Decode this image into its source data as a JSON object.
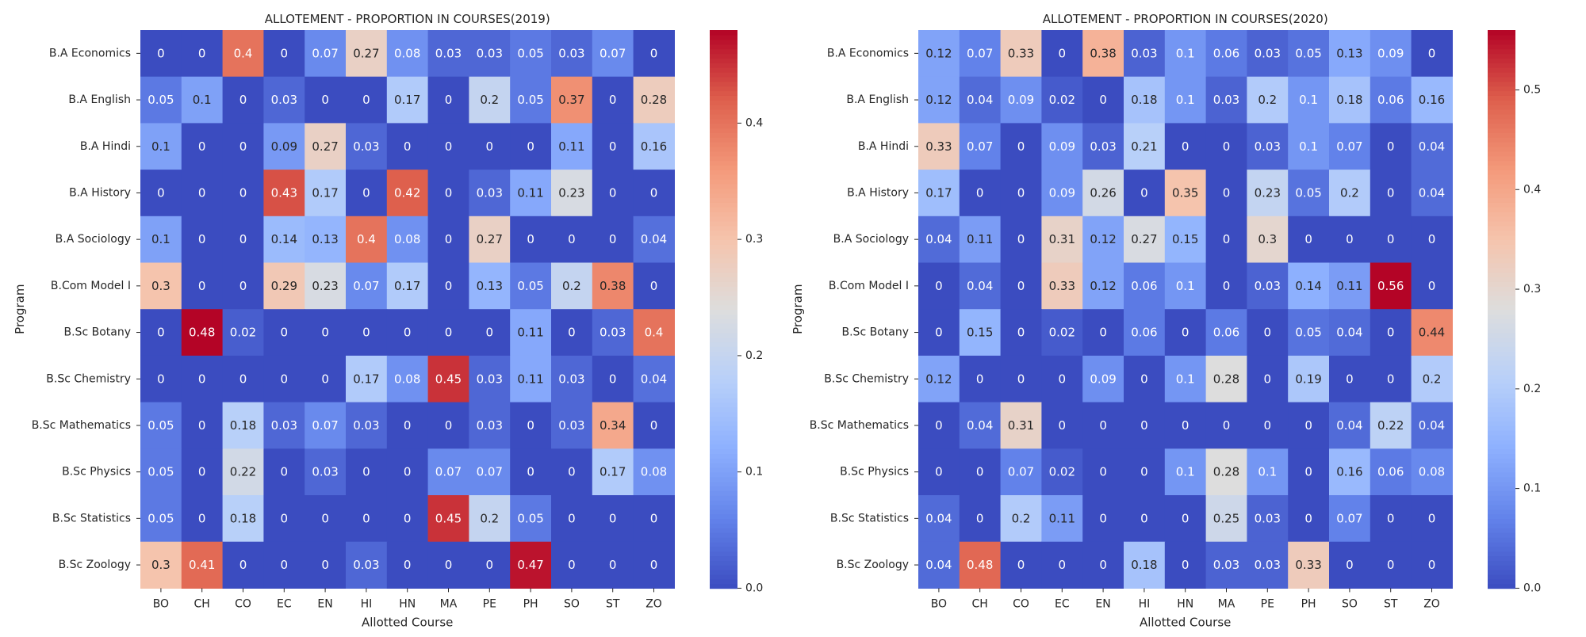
{
  "chart_data": [
    {
      "type": "heatmap",
      "title": "ALLOTEMENT - PROPORTION IN COURSES(2019)",
      "xlabel": "Allotted Course",
      "ylabel": "Program",
      "columns": [
        "BO",
        "CH",
        "CO",
        "EC",
        "EN",
        "HI",
        "HN",
        "MA",
        "PE",
        "PH",
        "SO",
        "ST",
        "ZO"
      ],
      "rows": [
        "B.A Economics",
        "B.A English",
        "B.A Hindi",
        "B.A History",
        "B.A Sociology",
        "B.Com Model I",
        "B.Sc Botany",
        "B.Sc Chemistry",
        "B.Sc Mathematics",
        "B.Sc Physics",
        "B.Sc Statistics",
        "B.Sc Zoology"
      ],
      "values": [
        [
          0,
          0,
          0.4,
          0,
          0.07,
          0.27,
          0.08,
          0.03,
          0.03,
          0.05,
          0.03,
          0.07,
          0
        ],
        [
          0.05,
          0.1,
          0,
          0.03,
          0,
          0,
          0.17,
          0,
          0.2,
          0.05,
          0.37,
          0,
          0.28
        ],
        [
          0.1,
          0,
          0,
          0.09,
          0.27,
          0.03,
          0,
          0,
          0,
          0,
          0.11,
          0,
          0.16
        ],
        [
          0,
          0,
          0,
          0.43,
          0.17,
          0,
          0.42,
          0,
          0.03,
          0.11,
          0.23,
          0,
          0
        ],
        [
          0.1,
          0,
          0,
          0.14,
          0.13,
          0.4,
          0.08,
          0,
          0.27,
          0,
          0,
          0,
          0.04
        ],
        [
          0.3,
          0,
          0,
          0.29,
          0.23,
          0.07,
          0.17,
          0,
          0.13,
          0.05,
          0.2,
          0.38,
          0
        ],
        [
          0,
          0.48,
          0.02,
          0,
          0,
          0,
          0,
          0,
          0,
          0.11,
          0,
          0.03,
          0.4
        ],
        [
          0,
          0,
          0,
          0,
          0,
          0.17,
          0.08,
          0.45,
          0.03,
          0.11,
          0.03,
          0,
          0.04
        ],
        [
          0.05,
          0,
          0.18,
          0.03,
          0.07,
          0.03,
          0,
          0,
          0.03,
          0,
          0.03,
          0.34,
          0
        ],
        [
          0.05,
          0,
          0.22,
          0,
          0.03,
          0,
          0,
          0.07,
          0.07,
          0,
          0,
          0.17,
          0.08
        ],
        [
          0.05,
          0,
          0.18,
          0,
          0,
          0,
          0,
          0.45,
          0.2,
          0.05,
          0,
          0,
          0
        ],
        [
          0.3,
          0.41,
          0,
          0,
          0,
          0.03,
          0,
          0,
          0,
          0.47,
          0,
          0,
          0
        ]
      ],
      "vmin": 0,
      "vmax": 0.48,
      "colorbar_ticks": [
        "0.0",
        "0.1",
        "0.2",
        "0.3",
        "0.4"
      ],
      "colormap": "coolwarm"
    },
    {
      "type": "heatmap",
      "title": "ALLOTEMENT - PROPORTION IN COURSES(2020)",
      "xlabel": "Allotted Course",
      "ylabel": "Program",
      "columns": [
        "BO",
        "CH",
        "CO",
        "EC",
        "EN",
        "HI",
        "HN",
        "MA",
        "PE",
        "PH",
        "SO",
        "ST",
        "ZO"
      ],
      "rows": [
        "B.A Economics",
        "B.A English",
        "B.A Hindi",
        "B.A History",
        "B.A Sociology",
        "B.Com Model I",
        "B.Sc Botany",
        "B.Sc Chemistry",
        "B.Sc Mathematics",
        "B.Sc Physics",
        "B.Sc Statistics",
        "B.Sc Zoology"
      ],
      "values": [
        [
          0.12,
          0.07,
          0.33,
          0,
          0.38,
          0.03,
          0.1,
          0.06,
          0.03,
          0.05,
          0.13,
          0.09,
          0
        ],
        [
          0.12,
          0.04,
          0.09,
          0.02,
          0,
          0.18,
          0.1,
          0.03,
          0.2,
          0.1,
          0.18,
          0.06,
          0.16
        ],
        [
          0.33,
          0.07,
          0,
          0.09,
          0.03,
          0.21,
          0,
          0,
          0.03,
          0.1,
          0.07,
          0,
          0.04
        ],
        [
          0.17,
          0,
          0,
          0.09,
          0.26,
          0,
          0.35,
          0,
          0.23,
          0.05,
          0.2,
          0,
          0.04
        ],
        [
          0.04,
          0.11,
          0,
          0.31,
          0.12,
          0.27,
          0.15,
          0,
          0.3,
          0,
          0,
          0,
          0
        ],
        [
          0,
          0.04,
          0,
          0.33,
          0.12,
          0.06,
          0.1,
          0,
          0.03,
          0.14,
          0.11,
          0.56,
          0
        ],
        [
          0,
          0.15,
          0,
          0.02,
          0,
          0.06,
          0,
          0.06,
          0,
          0.05,
          0.04,
          0,
          0.44
        ],
        [
          0.12,
          0,
          0,
          0,
          0.09,
          0,
          0.1,
          0.28,
          0,
          0.19,
          0,
          0,
          0.2
        ],
        [
          0,
          0.04,
          0.31,
          0,
          0,
          0,
          0,
          0,
          0,
          0,
          0.04,
          0.22,
          0.04
        ],
        [
          0,
          0,
          0.07,
          0.02,
          0,
          0,
          0.1,
          0.28,
          0.1,
          0,
          0.16,
          0.06,
          0.08
        ],
        [
          0.04,
          0,
          0.2,
          0.11,
          0,
          0,
          0,
          0.25,
          0.03,
          0,
          0.07,
          0,
          0
        ],
        [
          0.04,
          0.48,
          0,
          0,
          0,
          0.18,
          0,
          0.03,
          0.03,
          0.33,
          0,
          0,
          0
        ]
      ],
      "vmin": 0,
      "vmax": 0.56,
      "colorbar_ticks": [
        "0.0",
        "0.1",
        "0.2",
        "0.3",
        "0.4",
        "0.5"
      ],
      "colormap": "coolwarm"
    }
  ]
}
